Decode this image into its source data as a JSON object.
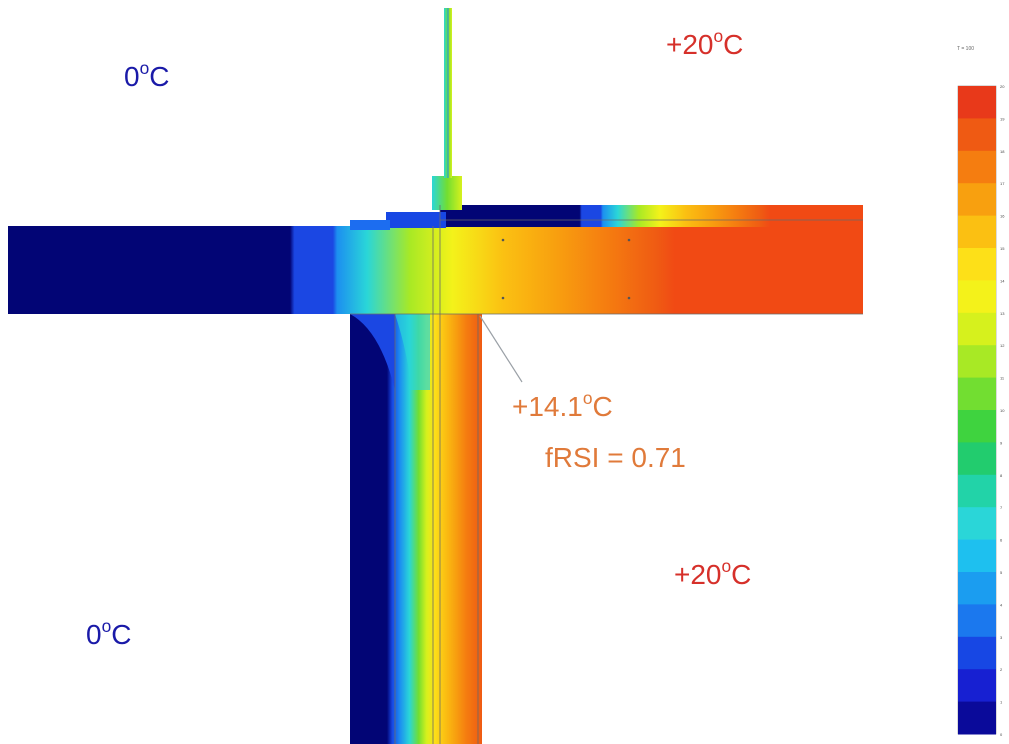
{
  "labels": {
    "outside_top": {
      "value": "0",
      "unit": "C"
    },
    "inside_top": {
      "value": "+20",
      "unit": "C"
    },
    "outside_bottom": {
      "value": "0",
      "unit": "C"
    },
    "inside_bottom": {
      "value": "+20",
      "unit": "C"
    }
  },
  "callout": {
    "temp_value": "+14.1",
    "temp_unit": "C",
    "frsi": "fRSI = 0.71"
  },
  "legend": {
    "header": "T = 100",
    "ticks": [
      "20",
      "19",
      "18",
      "17",
      "16",
      "15",
      "14",
      "13",
      "12",
      "11",
      "10",
      "9",
      "8",
      "7",
      "6",
      "5",
      "4",
      "3",
      "2",
      "1",
      "0"
    ],
    "colors": [
      "#e8391a",
      "#ef5a13",
      "#f57d10",
      "#f8a00f",
      "#fbc012",
      "#fde018",
      "#f4f21a",
      "#d6f11d",
      "#a8e925",
      "#72de31",
      "#3fd33f",
      "#22cc6e",
      "#22d3a8",
      "#2ad6d8",
      "#1ec0ef",
      "#1b9df0",
      "#1b78ee",
      "#1747e4",
      "#1720d2",
      "#0a0a9a"
    ]
  },
  "colors": {
    "cold_text": "#1a1aa8",
    "warm_text": "#d6302a",
    "callout_text": "#e07a3a",
    "deep_cold": "#020575",
    "hot": "#f14a14"
  }
}
